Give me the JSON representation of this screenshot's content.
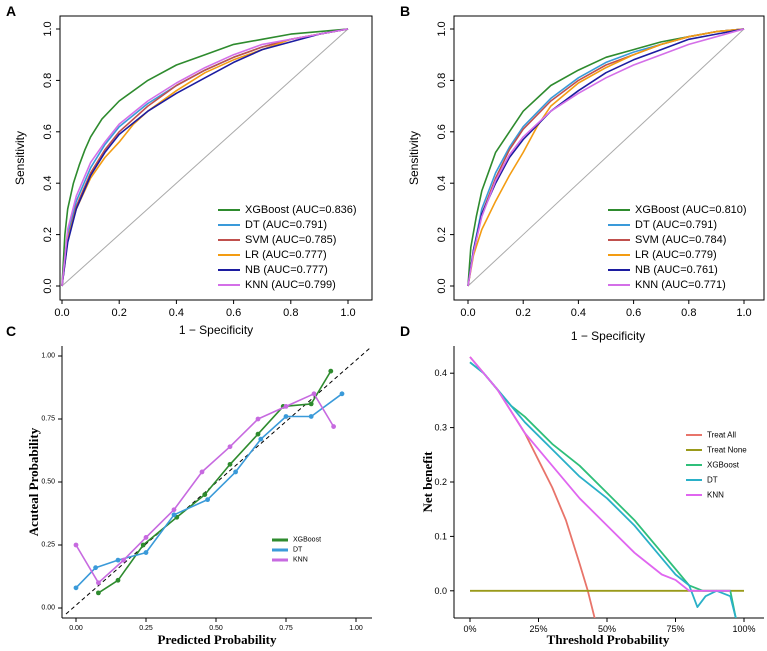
{
  "chart_data": [
    {
      "panel": "A",
      "type": "line",
      "title": "",
      "xlabel": "1 − Specificity",
      "ylabel": "Sensitivity",
      "xlim": [
        0,
        1
      ],
      "ylim": [
        0,
        1
      ],
      "xticks": [
        "0.0",
        "0.2",
        "0.4",
        "0.6",
        "0.8",
        "1.0"
      ],
      "yticks": [
        "0.0",
        "0.2",
        "0.4",
        "0.6",
        "0.8",
        "1.0"
      ],
      "legend_position": "bottom-right",
      "series": [
        {
          "name": "XGBoost (AUC=0.836)",
          "color": "#2e8b2e",
          "x": [
            0,
            0.01,
            0.02,
            0.04,
            0.06,
            0.08,
            0.1,
            0.14,
            0.2,
            0.3,
            0.4,
            0.5,
            0.6,
            0.7,
            0.8,
            0.9,
            1.0
          ],
          "y": [
            0,
            0.2,
            0.3,
            0.4,
            0.47,
            0.53,
            0.58,
            0.65,
            0.72,
            0.8,
            0.86,
            0.9,
            0.94,
            0.96,
            0.98,
            0.99,
            1.0
          ]
        },
        {
          "name": "DT (AUC=0.791)",
          "color": "#3a9ad9",
          "x": [
            0,
            0.02,
            0.05,
            0.1,
            0.15,
            0.2,
            0.3,
            0.4,
            0.5,
            0.6,
            0.7,
            0.8,
            0.9,
            1.0
          ],
          "y": [
            0,
            0.2,
            0.33,
            0.46,
            0.55,
            0.62,
            0.71,
            0.78,
            0.84,
            0.89,
            0.93,
            0.96,
            0.98,
            1.0
          ]
        },
        {
          "name": "SVM (AUC=0.785)",
          "color": "#c0504d",
          "x": [
            0,
            0.02,
            0.05,
            0.1,
            0.15,
            0.2,
            0.3,
            0.4,
            0.5,
            0.6,
            0.7,
            0.8,
            0.9,
            1.0
          ],
          "y": [
            0,
            0.18,
            0.31,
            0.44,
            0.53,
            0.6,
            0.7,
            0.78,
            0.84,
            0.89,
            0.93,
            0.96,
            0.98,
            1.0
          ]
        },
        {
          "name": "LR (AUC=0.777)",
          "color": "#f39c12",
          "x": [
            0,
            0.02,
            0.05,
            0.1,
            0.15,
            0.2,
            0.25,
            0.3,
            0.4,
            0.5,
            0.6,
            0.7,
            0.8,
            0.9,
            1.0
          ],
          "y": [
            0,
            0.18,
            0.3,
            0.42,
            0.5,
            0.56,
            0.63,
            0.68,
            0.76,
            0.83,
            0.88,
            0.92,
            0.96,
            0.98,
            1.0
          ]
        },
        {
          "name": "NB (AUC=0.777)",
          "color": "#1c1ca0",
          "x": [
            0,
            0.02,
            0.05,
            0.1,
            0.15,
            0.2,
            0.3,
            0.4,
            0.5,
            0.6,
            0.7,
            0.8,
            0.9,
            1.0
          ],
          "y": [
            0,
            0.17,
            0.3,
            0.43,
            0.52,
            0.59,
            0.68,
            0.75,
            0.81,
            0.87,
            0.92,
            0.95,
            0.98,
            1.0
          ]
        },
        {
          "name": "KNN (AUC=0.799)",
          "color": "#d46fe8",
          "x": [
            0,
            0.02,
            0.05,
            0.1,
            0.15,
            0.2,
            0.3,
            0.4,
            0.5,
            0.6,
            0.7,
            0.8,
            0.9,
            1.0
          ],
          "y": [
            0,
            0.22,
            0.35,
            0.48,
            0.56,
            0.63,
            0.72,
            0.79,
            0.85,
            0.9,
            0.94,
            0.96,
            0.98,
            1.0
          ]
        }
      ],
      "reference_line": {
        "x": [
          0,
          1
        ],
        "y": [
          0,
          1
        ],
        "color": "#b0b0b0"
      }
    },
    {
      "panel": "B",
      "type": "line",
      "title": "",
      "xlabel": "1 − Specificity",
      "ylabel": "Sensitivity",
      "xlim": [
        0,
        1
      ],
      "ylim": [
        0,
        1
      ],
      "xticks": [
        "0.0",
        "0.2",
        "0.4",
        "0.6",
        "0.8",
        "1.0"
      ],
      "yticks": [
        "0.0",
        "0.2",
        "0.4",
        "0.6",
        "0.8",
        "1.0"
      ],
      "legend_position": "bottom-right",
      "series": [
        {
          "name": "XGBoost (AUC=0.810)",
          "color": "#2e8b2e",
          "x": [
            0,
            0.01,
            0.03,
            0.05,
            0.08,
            0.1,
            0.15,
            0.2,
            0.3,
            0.4,
            0.5,
            0.6,
            0.7,
            0.8,
            0.9,
            1.0
          ],
          "y": [
            0,
            0.15,
            0.27,
            0.37,
            0.46,
            0.52,
            0.6,
            0.68,
            0.78,
            0.84,
            0.89,
            0.92,
            0.95,
            0.97,
            0.99,
            1.0
          ]
        },
        {
          "name": "DT (AUC=0.791)",
          "color": "#3a9ad9",
          "x": [
            0,
            0.02,
            0.05,
            0.1,
            0.15,
            0.2,
            0.3,
            0.4,
            0.5,
            0.6,
            0.7,
            0.8,
            0.9,
            1.0
          ],
          "y": [
            0,
            0.14,
            0.3,
            0.44,
            0.54,
            0.62,
            0.73,
            0.81,
            0.87,
            0.91,
            0.94,
            0.97,
            0.99,
            1.0
          ]
        },
        {
          "name": "SVM (AUC=0.784)",
          "color": "#c0504d",
          "x": [
            0,
            0.02,
            0.05,
            0.1,
            0.15,
            0.2,
            0.3,
            0.4,
            0.5,
            0.6,
            0.7,
            0.8,
            0.9,
            1.0
          ],
          "y": [
            0,
            0.13,
            0.28,
            0.42,
            0.53,
            0.61,
            0.72,
            0.8,
            0.86,
            0.9,
            0.94,
            0.97,
            0.99,
            1.0
          ]
        },
        {
          "name": "LR (AUC=0.779)",
          "color": "#f39c12",
          "x": [
            0,
            0.02,
            0.05,
            0.1,
            0.15,
            0.2,
            0.25,
            0.3,
            0.4,
            0.5,
            0.6,
            0.7,
            0.8,
            0.9,
            1.0
          ],
          "y": [
            0,
            0.12,
            0.22,
            0.33,
            0.43,
            0.52,
            0.62,
            0.7,
            0.79,
            0.85,
            0.9,
            0.94,
            0.97,
            0.99,
            1.0
          ]
        },
        {
          "name": "NB (AUC=0.761)",
          "color": "#1c1ca0",
          "x": [
            0,
            0.02,
            0.05,
            0.1,
            0.15,
            0.2,
            0.3,
            0.4,
            0.5,
            0.6,
            0.7,
            0.8,
            0.9,
            1.0
          ],
          "y": [
            0,
            0.14,
            0.28,
            0.4,
            0.5,
            0.57,
            0.68,
            0.76,
            0.83,
            0.88,
            0.92,
            0.96,
            0.98,
            1.0
          ]
        },
        {
          "name": "KNN (AUC=0.771)",
          "color": "#d46fe8",
          "x": [
            0,
            0.02,
            0.05,
            0.1,
            0.15,
            0.2,
            0.3,
            0.4,
            0.5,
            0.6,
            0.7,
            0.8,
            0.9,
            1.0
          ],
          "y": [
            0,
            0.13,
            0.27,
            0.41,
            0.51,
            0.58,
            0.68,
            0.75,
            0.81,
            0.86,
            0.9,
            0.94,
            0.97,
            1.0
          ]
        }
      ],
      "reference_line": {
        "x": [
          0,
          1
        ],
        "y": [
          0,
          1
        ],
        "color": "#b0b0b0"
      }
    },
    {
      "panel": "C",
      "type": "line",
      "title": "",
      "xlabel": "Predicted Probability",
      "ylabel": "Acuteal Probability",
      "xlim": [
        0,
        1
      ],
      "ylim": [
        0,
        1
      ],
      "xticks": [
        "0.00",
        "0.25",
        "0.50",
        "0.75",
        "1.00"
      ],
      "yticks": [
        "0.00",
        "0.25",
        "0.50",
        "0.75",
        "1.00"
      ],
      "legend_position": "right",
      "series": [
        {
          "name": "XGBoost",
          "color": "#2e8b2e",
          "x": [
            0.08,
            0.15,
            0.24,
            0.36,
            0.46,
            0.55,
            0.65,
            0.74,
            0.84,
            0.91
          ],
          "y": [
            0.06,
            0.11,
            0.25,
            0.36,
            0.45,
            0.57,
            0.69,
            0.8,
            0.81,
            0.94
          ]
        },
        {
          "name": "DT",
          "color": "#3a9ad9",
          "x": [
            0.0,
            0.07,
            0.15,
            0.25,
            0.35,
            0.47,
            0.57,
            0.66,
            0.75,
            0.84,
            0.95
          ],
          "y": [
            0.08,
            0.16,
            0.19,
            0.22,
            0.37,
            0.43,
            0.54,
            0.67,
            0.76,
            0.76,
            0.85
          ]
        },
        {
          "name": "KNN",
          "color": "#c76ae0",
          "x": [
            0.0,
            0.08,
            0.17,
            0.25,
            0.35,
            0.45,
            0.55,
            0.65,
            0.75,
            0.85,
            0.92
          ],
          "y": [
            0.25,
            0.1,
            0.19,
            0.28,
            0.39,
            0.54,
            0.64,
            0.75,
            0.8,
            0.85,
            0.72
          ]
        }
      ],
      "reference_line": {
        "x": [
          -0.05,
          1.05
        ],
        "y": [
          -0.05,
          1.05
        ],
        "color": "#000000",
        "style": "dashed"
      }
    },
    {
      "panel": "D",
      "type": "line",
      "title": "",
      "xlabel": "Threshold Probability",
      "ylabel": "Net benefit",
      "xlim": [
        0,
        1
      ],
      "ylim": [
        -0.05,
        0.45
      ],
      "xticks": [
        "0%",
        "25%",
        "50%",
        "75%",
        "100%"
      ],
      "yticks": [
        "0.0",
        "0.1",
        "0.2",
        "0.3",
        "0.4"
      ],
      "legend_position": "right",
      "series": [
        {
          "name": "Treat All",
          "color": "#e8746a",
          "x": [
            0,
            0.05,
            0.1,
            0.15,
            0.2,
            0.25,
            0.3,
            0.35,
            0.4,
            0.43,
            0.46
          ],
          "y": [
            0.43,
            0.4,
            0.37,
            0.33,
            0.29,
            0.24,
            0.19,
            0.13,
            0.05,
            0.0,
            -0.06
          ]
        },
        {
          "name": "Treat None",
          "color": "#9a9a1a",
          "x": [
            0,
            1
          ],
          "y": [
            0,
            0
          ]
        },
        {
          "name": "XGBoost",
          "color": "#2fbf7a",
          "x": [
            0,
            0.05,
            0.1,
            0.15,
            0.2,
            0.3,
            0.4,
            0.5,
            0.6,
            0.7,
            0.75,
            0.8,
            0.85,
            0.9,
            0.95,
            0.97
          ],
          "y": [
            0.42,
            0.4,
            0.37,
            0.34,
            0.32,
            0.27,
            0.23,
            0.18,
            0.13,
            0.07,
            0.04,
            0.01,
            0.0,
            0.0,
            0.0,
            -0.05
          ]
        },
        {
          "name": "DT",
          "color": "#2ab0c8",
          "x": [
            0,
            0.05,
            0.1,
            0.15,
            0.2,
            0.3,
            0.4,
            0.5,
            0.6,
            0.7,
            0.75,
            0.8,
            0.83,
            0.86,
            0.9,
            0.95,
            0.97
          ],
          "y": [
            0.42,
            0.4,
            0.37,
            0.34,
            0.31,
            0.26,
            0.21,
            0.17,
            0.12,
            0.06,
            0.03,
            0.01,
            -0.03,
            -0.01,
            0.0,
            -0.01,
            -0.05
          ]
        },
        {
          "name": "KNN",
          "color": "#e066f0",
          "x": [
            0,
            0.05,
            0.1,
            0.15,
            0.2,
            0.3,
            0.4,
            0.5,
            0.6,
            0.7,
            0.75,
            0.8,
            0.85,
            0.9,
            0.95
          ],
          "y": [
            0.43,
            0.4,
            0.37,
            0.33,
            0.29,
            0.23,
            0.17,
            0.12,
            0.07,
            0.03,
            0.02,
            0.0,
            0.0,
            0.0,
            0.0
          ]
        }
      ]
    }
  ]
}
